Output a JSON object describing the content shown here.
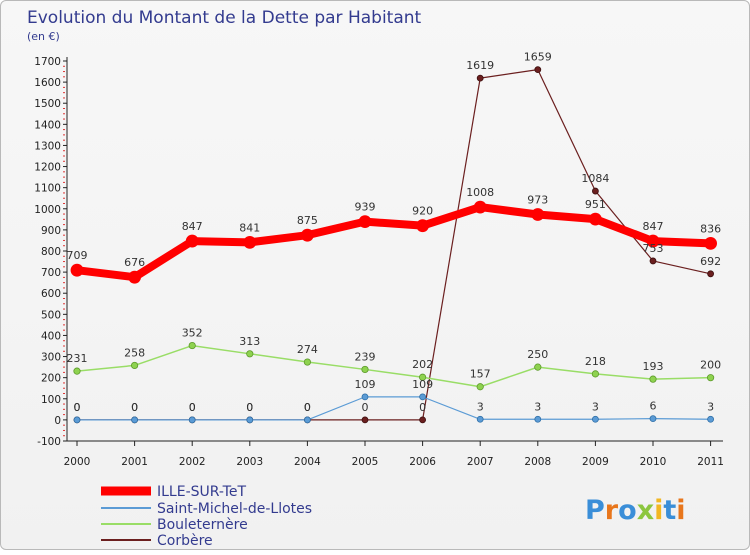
{
  "chart_data": {
    "type": "line",
    "title": "Evolution du Montant de la Dette par Habitant",
    "subtitle": "(en €)",
    "x": [
      "2000",
      "2001",
      "2002",
      "2003",
      "2004",
      "2005",
      "2006",
      "2007",
      "2008",
      "2009",
      "2010",
      "2011"
    ],
    "ylim": [
      -100,
      1700
    ],
    "yticks": [
      -100,
      0,
      100,
      200,
      300,
      400,
      500,
      600,
      700,
      800,
      900,
      1000,
      1100,
      1200,
      1300,
      1400,
      1500,
      1600,
      1700
    ],
    "grid": false,
    "legend_position": "bottom-left",
    "series": [
      {
        "name": "ILLE-SUR-TeT",
        "color": "#ff0000",
        "values": [
          709,
          676,
          847,
          841,
          875,
          939,
          920,
          1008,
          973,
          951,
          847,
          836
        ]
      },
      {
        "name": "Saint-Michel-de-Llotes",
        "color": "#5b9bd5",
        "values": [
          0,
          0,
          0,
          0,
          0,
          109,
          109,
          3,
          3,
          3,
          6,
          3
        ]
      },
      {
        "name": "Bouleternère",
        "color": "#99dd66",
        "values": [
          231,
          258,
          352,
          313,
          274,
          239,
          202,
          157,
          250,
          218,
          193,
          200
        ]
      },
      {
        "name": "Corbère",
        "color": "#6b1f1f",
        "values": [
          0,
          0,
          0,
          0,
          0,
          0,
          0,
          1619,
          1659,
          1084,
          753,
          692
        ]
      }
    ]
  },
  "logo": {
    "text": "Proxiti",
    "letters": [
      "P",
      "r",
      "o",
      "x",
      "i",
      "t",
      "i"
    ],
    "colors": [
      "#3a8ed8",
      "#e8761c",
      "#3a8ed8",
      "#8cc63f",
      "#f2b722",
      "#3a8ed8",
      "#e8761c"
    ]
  }
}
